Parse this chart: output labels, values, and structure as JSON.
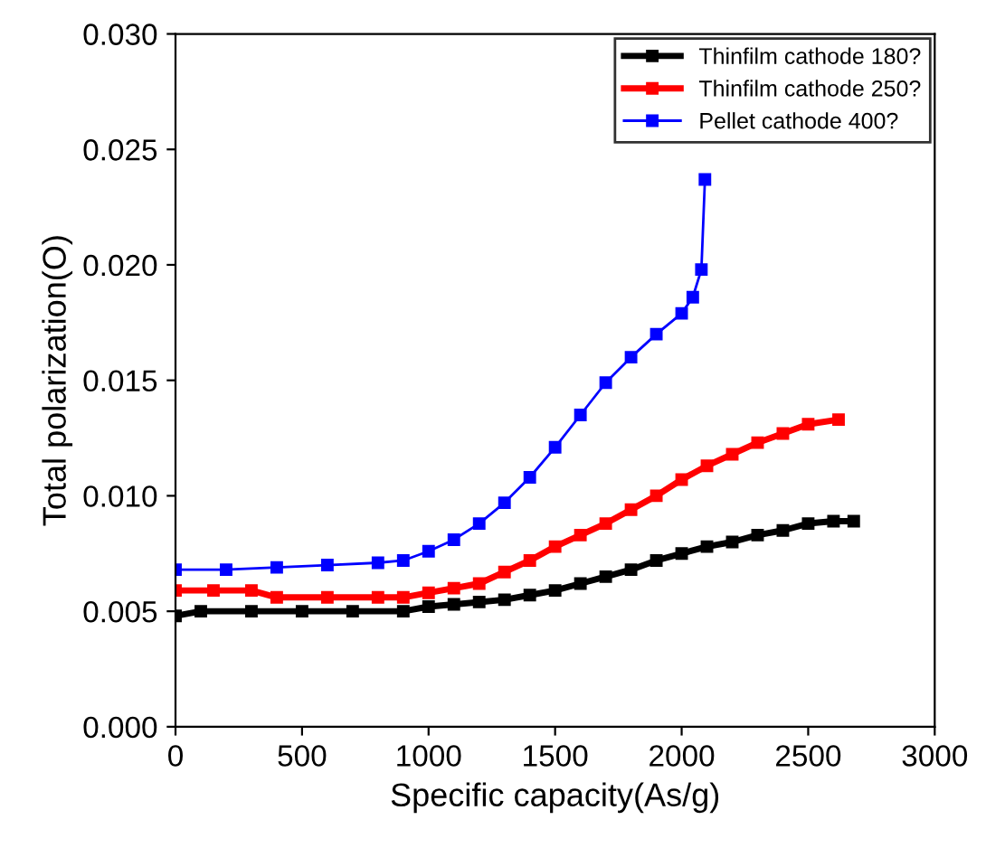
{
  "chart_data": {
    "type": "line",
    "xlabel": "Specific capacity(As/g)",
    "ylabel": "Total polarization(O)",
    "xlim": [
      0,
      3000
    ],
    "xticks": [
      0,
      500,
      1000,
      1500,
      2000,
      2500,
      3000
    ],
    "ylim": [
      0,
      0.03
    ],
    "yticks": [
      {
        "value": 0,
        "label": "0.000"
      },
      {
        "value": 0.005,
        "label": "0.005"
      },
      {
        "value": 0.01,
        "label": "0.010"
      },
      {
        "value": 0.015,
        "label": "0.015"
      },
      {
        "value": 0.02,
        "label": "0.020"
      },
      {
        "value": 0.025,
        "label": "0.025"
      },
      {
        "value": 0.03,
        "label": "0.030"
      }
    ],
    "grid": false,
    "legend": "top right",
    "marker": "square",
    "series": [
      {
        "name": "Thinfilm cathode 180?",
        "color": "#000000",
        "x": [
          0,
          100,
          300,
          500,
          700,
          900,
          1000,
          1100,
          1200,
          1300,
          1400,
          1500,
          1600,
          1700,
          1800,
          1900,
          2000,
          2100,
          2200,
          2300,
          2400,
          2500,
          2600,
          2680
        ],
        "values": [
          0.0048,
          0.005,
          0.005,
          0.005,
          0.005,
          0.005,
          0.0052,
          0.0053,
          0.0054,
          0.0055,
          0.0057,
          0.0059,
          0.0062,
          0.0065,
          0.0068,
          0.0072,
          0.0075,
          0.0078,
          0.008,
          0.0083,
          0.0085,
          0.0088,
          0.0089,
          0.0089
        ]
      },
      {
        "name": "Thinfilm cathode 250?",
        "color": "#ff0000",
        "x": [
          0,
          150,
          300,
          400,
          600,
          800,
          900,
          1000,
          1100,
          1200,
          1300,
          1400,
          1500,
          1600,
          1700,
          1800,
          1900,
          2000,
          2100,
          2200,
          2300,
          2400,
          2500,
          2620
        ],
        "values": [
          0.0059,
          0.0059,
          0.0059,
          0.0056,
          0.0056,
          0.0056,
          0.0056,
          0.0058,
          0.006,
          0.0062,
          0.0067,
          0.0072,
          0.0078,
          0.0083,
          0.0088,
          0.0094,
          0.01,
          0.0107,
          0.0113,
          0.0118,
          0.0123,
          0.0127,
          0.0131,
          0.0133
        ]
      },
      {
        "name": "Pellet cathode 400?",
        "color": "#0000ff",
        "x": [
          0,
          200,
          400,
          600,
          800,
          900,
          1000,
          1100,
          1200,
          1300,
          1400,
          1500,
          1600,
          1700,
          1800,
          1900,
          2000,
          2044,
          2078,
          2092
        ],
        "values": [
          0.0068,
          0.0068,
          0.0069,
          0.007,
          0.0071,
          0.0072,
          0.0076,
          0.0081,
          0.0088,
          0.0097,
          0.0108,
          0.0121,
          0.0135,
          0.0149,
          0.016,
          0.017,
          0.0179,
          0.0186,
          0.0198,
          0.0237
        ]
      }
    ]
  }
}
